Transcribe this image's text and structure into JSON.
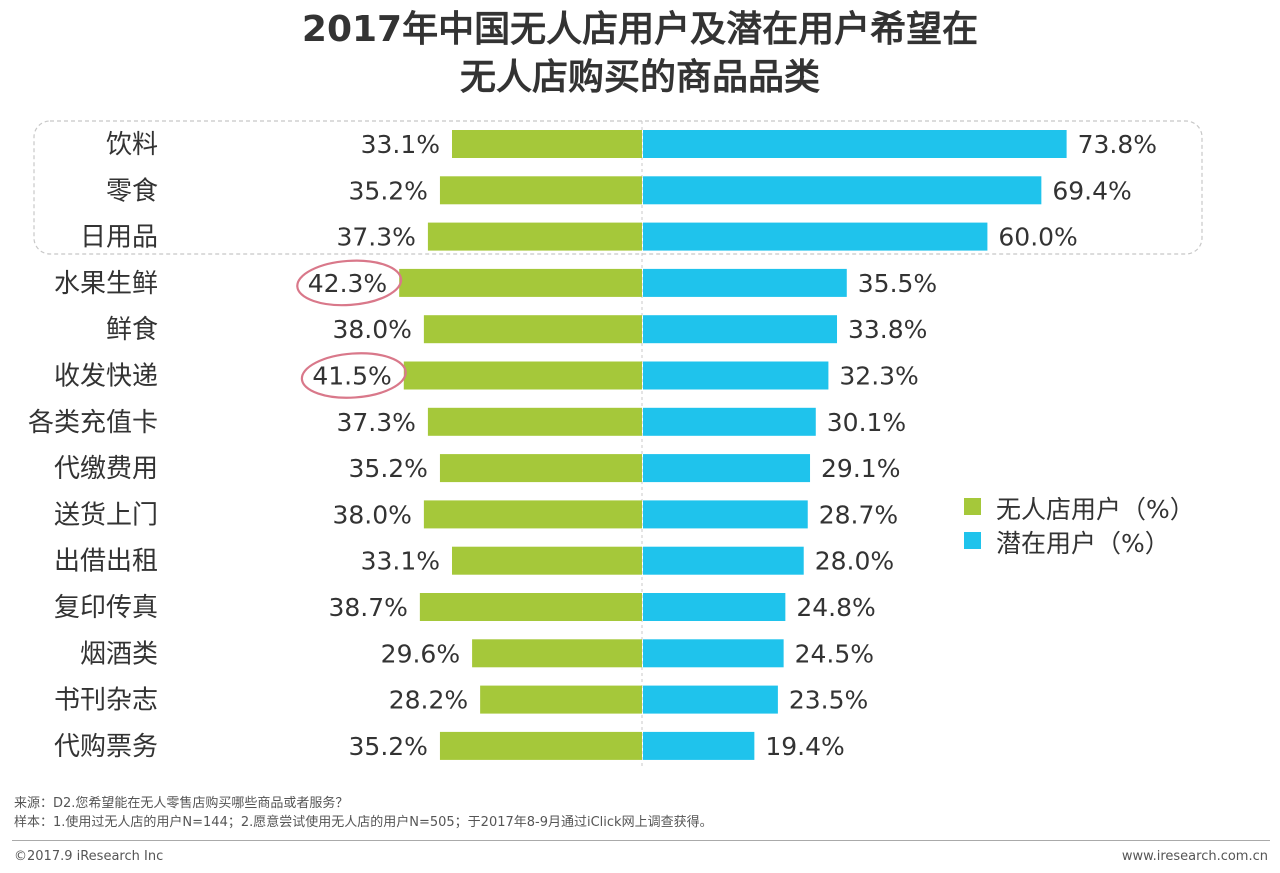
{
  "title_line1": "2017年中国无人店用户及潜在用户希望在",
  "title_line2": "无人店购买的商品品类",
  "chart_data": {
    "type": "bar",
    "orientation": "horizontal-diverging",
    "categories": [
      "饮料",
      "零食",
      "日用品",
      "水果生鲜",
      "鲜食",
      "收发快递",
      "各类充值卡",
      "代缴费用",
      "送货上门",
      "出借出租",
      "复印传真",
      "烟酒类",
      "书刊杂志",
      "代购票务"
    ],
    "series": [
      {
        "name": "无人店用户（%）",
        "color": "#a5c83a",
        "values": [
          33.1,
          35.2,
          37.3,
          42.3,
          38.0,
          41.5,
          37.3,
          35.2,
          38.0,
          33.1,
          38.7,
          29.6,
          28.2,
          35.2
        ],
        "labels": [
          "33.1%",
          "35.2%",
          "37.3%",
          "42.3%",
          "38.0%",
          "41.5%",
          "37.3%",
          "35.2%",
          "38.0%",
          "33.1%",
          "38.7%",
          "29.6%",
          "28.2%",
          "35.2%"
        ]
      },
      {
        "name": "潜在用户（%）",
        "color": "#1fc3ec",
        "values": [
          73.8,
          69.4,
          60.0,
          35.5,
          33.8,
          32.3,
          30.1,
          29.1,
          28.7,
          28.0,
          24.8,
          24.5,
          23.5,
          19.4
        ],
        "labels": [
          "73.8%",
          "69.4%",
          "60.0%",
          "35.5%",
          "33.8%",
          "32.3%",
          "30.1%",
          "29.1%",
          "28.7%",
          "28.0%",
          "24.8%",
          "24.5%",
          "23.5%",
          "19.4%"
        ]
      }
    ],
    "highlighted_group": [
      "饮料",
      "零食",
      "日用品"
    ],
    "circled_values": [
      "42.3%",
      "41.5%"
    ],
    "circle_color": "#d9788a"
  },
  "footer": {
    "source": "来源：D2.您希望能在无人零售店购买哪些商品或者服务？",
    "sample": "样本：1.使用过无人店的用户N=144；2.愿意尝试使用无人店的用户N=505；于2017年8-9月通过iClick网上调查获得。",
    "copyright": "©2017.9 iResearch Inc",
    "website": "www.iresearch.com.cn"
  }
}
